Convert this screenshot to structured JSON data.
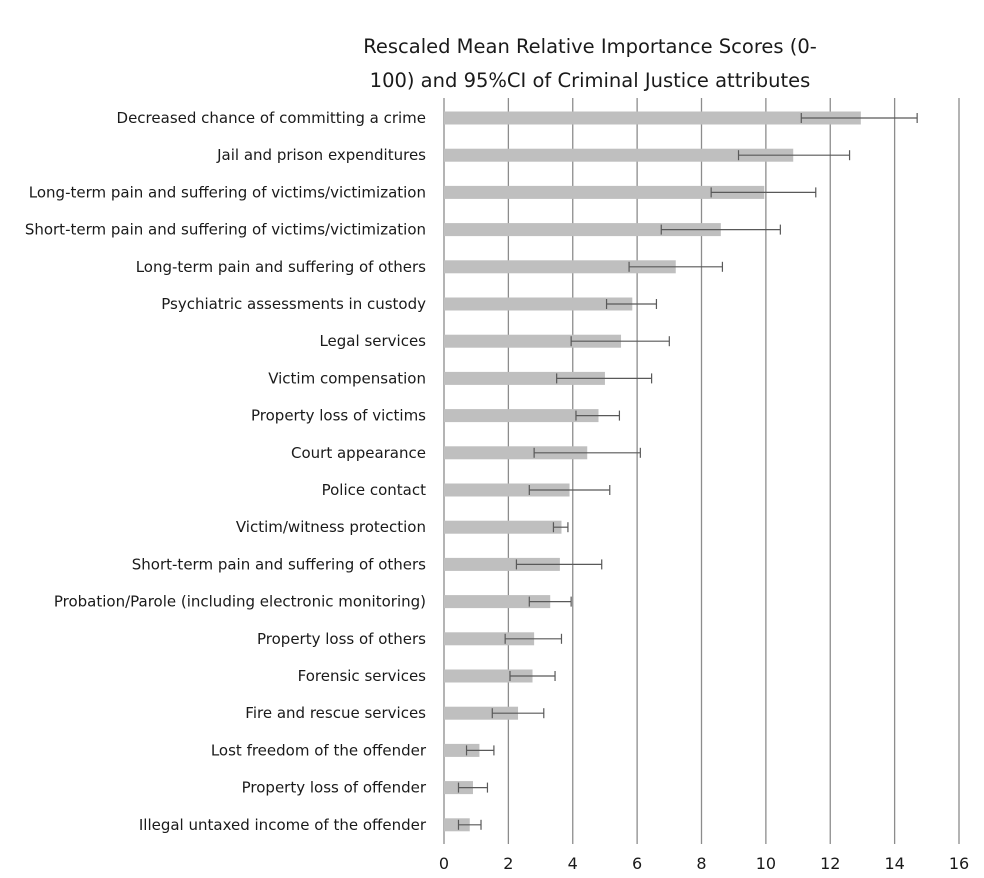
{
  "chart_data": {
    "type": "bar",
    "orientation": "horizontal",
    "title_line1": "Rescaled Mean Relative Importance Scores (0-",
    "title_line2": "100) and 95%CI of Criminal Justice attributes",
    "xlim": [
      0,
      16
    ],
    "xticks": [
      "0",
      "2",
      "4",
      "6",
      "8",
      "10",
      "12",
      "14",
      "16"
    ],
    "grid": "vertical",
    "legend": "none",
    "bar_color": "#bfbfbf",
    "error_color": "#595959",
    "categories": [
      "Decreased chance of committing a crime",
      "Jail and prison expenditures",
      "Long-term pain and suffering of victims/victimization",
      "Short-term pain and suffering of victims/victimization",
      "Long-term pain and suffering of others",
      "Psychiatric assessments in custody",
      "Legal services",
      "Victim compensation",
      "Property loss of victims",
      "Court appearance",
      "Police contact",
      "Victim/witness protection",
      "Short-term pain and suffering of others",
      "Probation/Parole (including electronic monitoring)",
      "Property loss of others",
      "Forensic services",
      "Fire and rescue services",
      "Lost freedom of the offender",
      "Property loss of offender",
      "Illegal untaxed income of the offender"
    ],
    "values": [
      12.95,
      10.85,
      9.95,
      8.6,
      7.2,
      5.85,
      5.5,
      5.0,
      4.8,
      4.45,
      3.9,
      3.65,
      3.6,
      3.3,
      2.8,
      2.75,
      2.3,
      1.1,
      0.9,
      0.8
    ],
    "ci_low": [
      11.1,
      9.15,
      8.3,
      6.75,
      5.75,
      5.05,
      3.95,
      3.5,
      4.1,
      2.8,
      2.65,
      3.4,
      2.25,
      2.65,
      1.9,
      2.05,
      1.5,
      0.7,
      0.45,
      0.45
    ],
    "ci_high": [
      14.7,
      12.6,
      11.55,
      10.45,
      8.65,
      6.6,
      7.0,
      6.45,
      5.45,
      6.1,
      5.15,
      3.85,
      4.9,
      3.95,
      3.65,
      3.45,
      3.1,
      1.55,
      1.35,
      1.15
    ]
  }
}
